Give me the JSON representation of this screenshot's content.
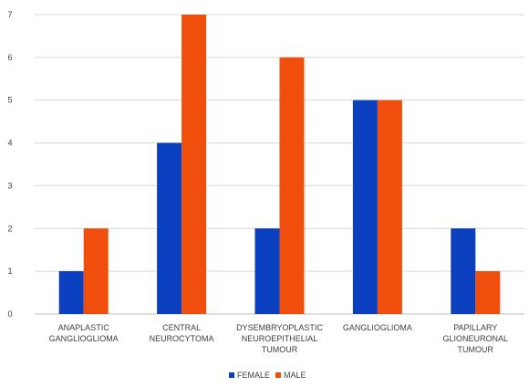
{
  "chart_data": {
    "type": "bar",
    "title": "",
    "xlabel": "",
    "ylabel": "",
    "ylim": [
      0,
      7
    ],
    "yticks": [
      0,
      1,
      2,
      3,
      4,
      5,
      6,
      7
    ],
    "grid": true,
    "legend_position": "bottom",
    "categories": [
      [
        "ANAPLASTIC",
        "GANGLIOGLIOMA"
      ],
      [
        "CENTRAL",
        "NEUROCYTOMA"
      ],
      [
        "DYSEMBRYOPLASTIC",
        "NEUROEPITHELIAL",
        "TUMOUR"
      ],
      [
        "GANGLIOGLIOMA"
      ],
      [
        "PAPILLARY",
        "GLIONEURONAL",
        "TUMOUR"
      ]
    ],
    "series": [
      {
        "name": "FEMALE",
        "color": "#0a3fbf",
        "values": [
          1,
          4,
          2,
          5,
          2
        ]
      },
      {
        "name": "MALE",
        "color": "#f04e0c",
        "values": [
          2,
          7,
          6,
          5,
          1
        ]
      }
    ]
  }
}
